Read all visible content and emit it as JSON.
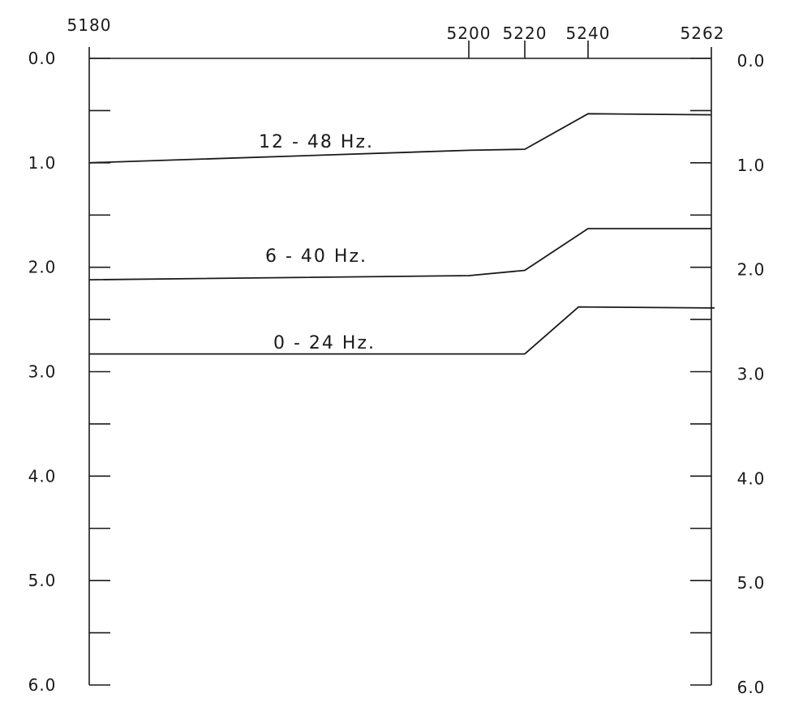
{
  "chart_data": {
    "type": "line",
    "title": "",
    "xlabel": "",
    "ylabel": "",
    "x_ticks": [
      5180,
      5200,
      5220,
      5240,
      5262
    ],
    "x_tick_labels": [
      "5180",
      "5200",
      "5220",
      "5240",
      "5262"
    ],
    "y_ticks": [
      0,
      1,
      2,
      3,
      4,
      5,
      6
    ],
    "y_tick_labels": [
      "0.0",
      "1.0",
      "2.0",
      "3.0",
      "4.0",
      "5.0",
      "6.0"
    ],
    "y_reversed": true,
    "y_minor_step": 0.5,
    "ylim": [
      0,
      6
    ],
    "colors": {
      "line": "#1a1a1a",
      "background": "#ffffff"
    },
    "series": [
      {
        "name": "12 - 48 Hz.",
        "x": [
          5180,
          5200,
          5220,
          5240,
          5262
        ],
        "y": [
          1.0,
          0.88,
          0.87,
          0.53,
          0.54
        ]
      },
      {
        "name": "6 - 40 Hz.",
        "x": [
          5180,
          5200,
          5220,
          5240,
          5262
        ],
        "y": [
          2.12,
          2.08,
          2.03,
          1.63,
          1.63
        ]
      },
      {
        "name": "0 - 24 Hz.",
        "x": [
          5180,
          5200,
          5220,
          5237,
          5262
        ],
        "y": [
          2.83,
          2.83,
          2.83,
          2.38,
          2.39
        ]
      }
    ]
  }
}
